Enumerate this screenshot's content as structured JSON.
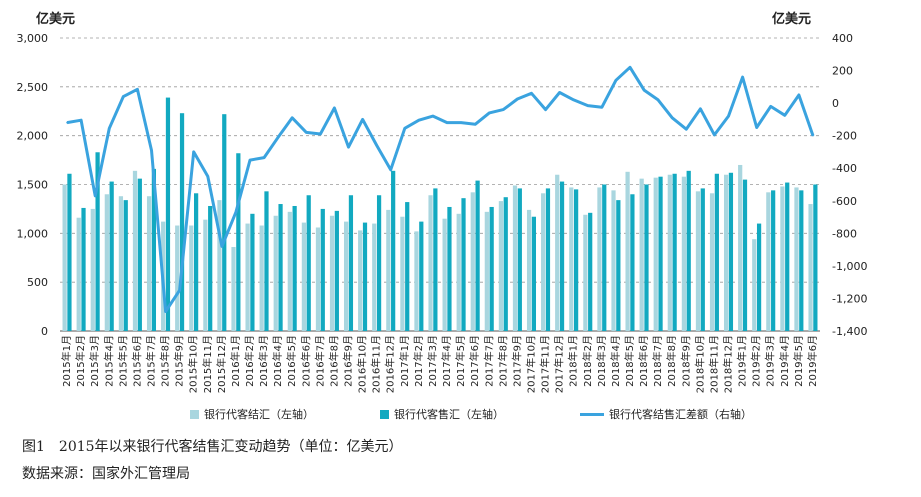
{
  "left_unit": "亿美元",
  "right_unit": "亿美元",
  "caption": "图1　2015年以来银行代客结售汇变动趋势（单位：亿美元）",
  "source": "数据来源：国家外汇管理局",
  "colors": {
    "settlement": "#a9d6df",
    "sales": "#12a9c0",
    "balance": "#3aa3df",
    "grid": "#9a9a9a"
  },
  "chart_data": {
    "type": "bar",
    "categories": [
      "2015年1月",
      "2015年2月",
      "2015年3月",
      "2015年4月",
      "2015年5月",
      "2015年6月",
      "2015年7月",
      "2015年8月",
      "2015年9月",
      "2015年10月",
      "2015年11月",
      "2015年12月",
      "2016年1月",
      "2016年2月",
      "2016年3月",
      "2016年4月",
      "2016年5月",
      "2016年6月",
      "2016年7月",
      "2016年8月",
      "2016年9月",
      "2016年10月",
      "2016年11月",
      "2016年12月",
      "2017年1月",
      "2017年2月",
      "2017年3月",
      "2017年4月",
      "2017年5月",
      "2017年6月",
      "2017年7月",
      "2017年8月",
      "2017年9月",
      "2017年10月",
      "2017年11月",
      "2017年12月",
      "2018年1月",
      "2018年2月",
      "2018年3月",
      "2018年4月",
      "2018年5月",
      "2018年6月",
      "2018年7月",
      "2018年8月",
      "2018年9月",
      "2018年10月",
      "2018年11月",
      "2018年12月",
      "2019年1月",
      "2019年2月",
      "2019年3月",
      "2019年4月",
      "2019年5月",
      "2019年6月"
    ],
    "series": [
      {
        "name": "银行代客结汇（左轴）",
        "type": "bar",
        "axis": "left",
        "values": [
          1500,
          1160,
          1250,
          1400,
          1380,
          1640,
          1380,
          1120,
          1080,
          1080,
          1140,
          1340,
          860,
          1100,
          1080,
          1180,
          1220,
          1110,
          1060,
          1180,
          1120,
          1030,
          1100,
          1240,
          1170,
          1020,
          1390,
          1150,
          1200,
          1420,
          1220,
          1330,
          1490,
          1240,
          1410,
          1600,
          1470,
          1190,
          1470,
          1440,
          1630,
          1560,
          1570,
          1600,
          1580,
          1430,
          1410,
          1600,
          1700,
          940,
          1420,
          1480,
          1470,
          1300
        ]
      },
      {
        "name": "银行代客售汇（左轴）",
        "type": "bar",
        "axis": "left",
        "values": [
          1610,
          1260,
          1830,
          1530,
          1340,
          1560,
          1660,
          2390,
          2230,
          1410,
          1280,
          2220,
          1820,
          1200,
          1430,
          1300,
          1280,
          1390,
          1250,
          1230,
          1390,
          1110,
          1390,
          1640,
          1320,
          1120,
          1460,
          1270,
          1360,
          1540,
          1270,
          1370,
          1460,
          1170,
          1460,
          1530,
          1450,
          1210,
          1500,
          1340,
          1400,
          1500,
          1580,
          1610,
          1640,
          1460,
          1610,
          1620,
          1550,
          1100,
          1440,
          1520,
          1440,
          1500
        ]
      },
      {
        "name": "银行代客结售汇差额（右轴）",
        "type": "line",
        "axis": "right",
        "values": [
          -120,
          -105,
          -570,
          -155,
          40,
          85,
          -290,
          -1280,
          -1150,
          -300,
          -450,
          -880,
          -670,
          -350,
          -335,
          -210,
          -90,
          -180,
          -190,
          -30,
          -270,
          -100,
          -260,
          -410,
          -155,
          -105,
          -80,
          -120,
          -120,
          -130,
          -60,
          -40,
          25,
          60,
          -40,
          65,
          20,
          -15,
          -25,
          140,
          220,
          80,
          20,
          -90,
          -160,
          -35,
          -195,
          -80,
          160,
          -150,
          -20,
          -75,
          50,
          -200
        ]
      }
    ],
    "left_axis": {
      "ylim": [
        0,
        3000
      ],
      "ticks": [
        "0",
        "500",
        "1,000",
        "1,500",
        "2,000",
        "2,500",
        "3,000"
      ]
    },
    "right_axis": {
      "ylim": [
        -1400,
        400
      ],
      "ticks": [
        "-1,400",
        "-1,200",
        "-1,000",
        "-800",
        "-600",
        "-400",
        "-200",
        "0",
        "200",
        "400"
      ]
    },
    "grid": true,
    "legend_position": "bottom"
  }
}
